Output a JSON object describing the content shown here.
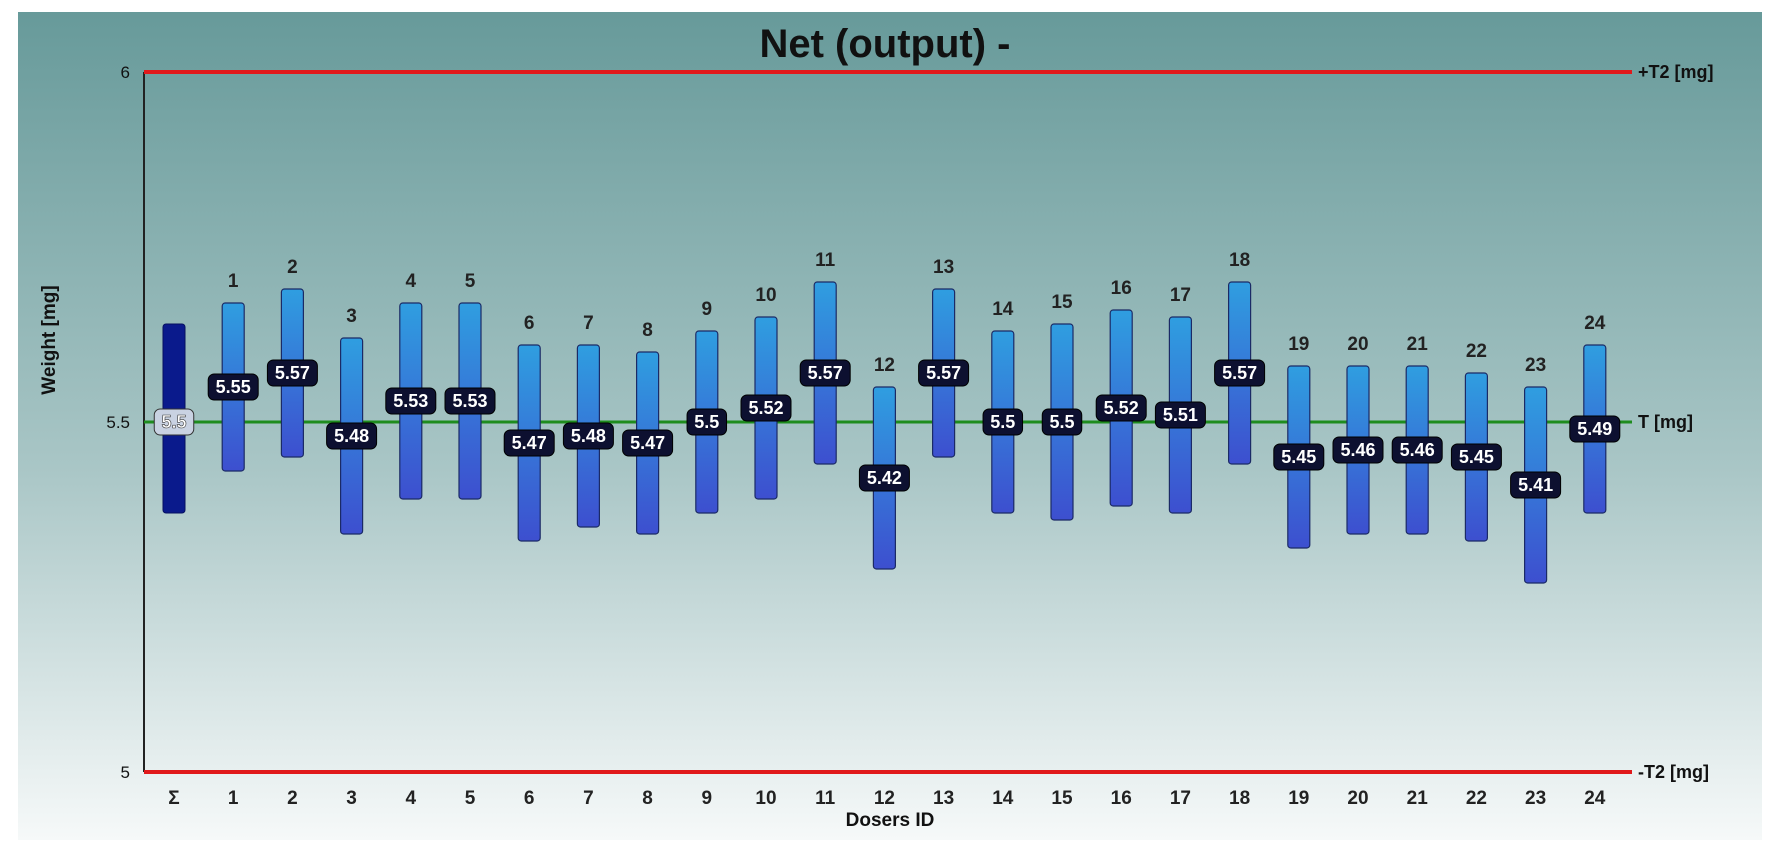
{
  "chart_data": {
    "type": "range-bar",
    "title": "Net (output) -",
    "xlabel": "Dosers ID",
    "ylabel": "Weight [mg]",
    "ylim": [
      5,
      6
    ],
    "yticks": [
      "6",
      "5.5",
      "5"
    ],
    "reference_lines": [
      {
        "name": "upper",
        "value": 6.0,
        "label": "+T2 [mg]",
        "color": "#e0191b"
      },
      {
        "name": "target",
        "value": 5.5,
        "label": "T [mg]",
        "color": "#1e8c1e"
      },
      {
        "name": "lower",
        "value": 5.0,
        "label": "-T2 [mg]",
        "color": "#e0191b"
      }
    ],
    "summary": {
      "label": "Σ",
      "value": 5.5,
      "value_label": "5.5",
      "min": 5.37,
      "max": 5.64
    },
    "categories": [
      "1",
      "2",
      "3",
      "4",
      "5",
      "6",
      "7",
      "8",
      "9",
      "10",
      "11",
      "12",
      "13",
      "14",
      "15",
      "16",
      "17",
      "18",
      "19",
      "20",
      "21",
      "22",
      "23",
      "24"
    ],
    "values": [
      5.55,
      5.57,
      5.48,
      5.53,
      5.53,
      5.47,
      5.48,
      5.47,
      5.5,
      5.52,
      5.57,
      5.42,
      5.57,
      5.5,
      5.5,
      5.52,
      5.51,
      5.57,
      5.45,
      5.46,
      5.46,
      5.45,
      5.41,
      5.49
    ],
    "value_labels": [
      "5.55",
      "5.57",
      "5.48",
      "5.53",
      "5.53",
      "5.47",
      "5.48",
      "5.47",
      "5.5",
      "5.52",
      "5.57",
      "5.42",
      "5.57",
      "5.5",
      "5.5",
      "5.52",
      "5.51",
      "5.57",
      "5.45",
      "5.46",
      "5.46",
      "5.45",
      "5.41",
      "5.49"
    ],
    "mins": [
      5.43,
      5.45,
      5.34,
      5.39,
      5.39,
      5.33,
      5.35,
      5.34,
      5.37,
      5.39,
      5.44,
      5.29,
      5.45,
      5.37,
      5.36,
      5.38,
      5.37,
      5.44,
      5.32,
      5.34,
      5.34,
      5.33,
      5.27,
      5.37
    ],
    "maxs": [
      5.67,
      5.69,
      5.62,
      5.67,
      5.67,
      5.61,
      5.61,
      5.6,
      5.63,
      5.65,
      5.7,
      5.55,
      5.69,
      5.63,
      5.64,
      5.66,
      5.65,
      5.7,
      5.58,
      5.58,
      5.58,
      5.57,
      5.55,
      5.61
    ],
    "colors": {
      "bar_top": "#2f9ee0",
      "bar_bottom": "#3d4fcf",
      "summary_bar": "#0a1a8c",
      "label_bg": "#0d1030",
      "bg_top": "#679a9a",
      "bg_bottom": "#f6f9f9"
    }
  }
}
